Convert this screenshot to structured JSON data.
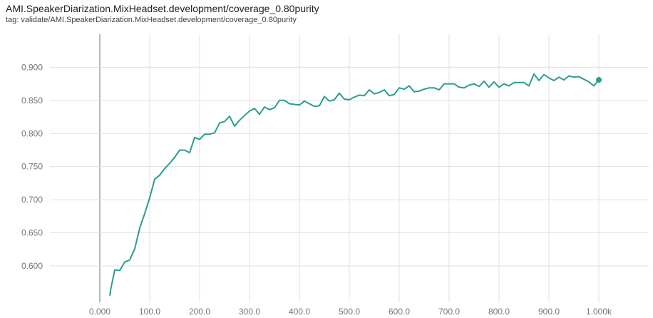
{
  "header": {
    "title": "AMI.SpeakerDiarization.MixHeadset.development/coverage_0.80purity",
    "tag": "tag: validate/AMI.SpeakerDiarization.MixHeadset.development/coverage_0.80purity"
  },
  "colors": {
    "series": "#2a9d8f",
    "grid": "#e0e0e0",
    "zero_line": "#888888",
    "tick_text": "#757575"
  },
  "chart_data": {
    "type": "line",
    "title": "AMI.SpeakerDiarization.MixHeadset.development/coverage_0.80purity",
    "xlabel": "",
    "ylabel": "",
    "grid": true,
    "xlim": [
      -100,
      1100
    ],
    "ylim": [
      0.545,
      0.95
    ],
    "x_ticks": [
      0,
      100,
      200,
      300,
      400,
      500,
      600,
      700,
      800,
      900,
      1000
    ],
    "x_tick_labels": [
      "0.000",
      "100.0",
      "200.0",
      "300.0",
      "400.0",
      "500.0",
      "600.0",
      "700.0",
      "800.0",
      "900.0",
      "1.000k"
    ],
    "y_ticks": [
      0.6,
      0.65,
      0.7,
      0.75,
      0.8,
      0.85,
      0.9
    ],
    "y_tick_labels": [
      "0.600",
      "0.650",
      "0.700",
      "0.750",
      "0.800",
      "0.850",
      "0.900"
    ],
    "series": [
      {
        "name": "",
        "x": [
          20,
          22,
          30,
          40,
          50,
          60,
          70,
          80,
          90,
          100,
          110,
          120,
          130,
          140,
          150,
          160,
          170,
          180,
          190,
          200,
          210,
          220,
          230,
          240,
          250,
          260,
          270,
          280,
          290,
          300,
          310,
          320,
          330,
          340,
          350,
          360,
          370,
          380,
          390,
          400,
          410,
          420,
          430,
          440,
          450,
          460,
          470,
          480,
          490,
          500,
          510,
          520,
          530,
          540,
          550,
          560,
          570,
          580,
          590,
          600,
          610,
          620,
          630,
          640,
          650,
          660,
          670,
          680,
          690,
          700,
          710,
          720,
          730,
          740,
          750,
          760,
          770,
          780,
          790,
          800,
          810,
          820,
          830,
          840,
          850,
          860,
          870,
          880,
          890,
          900,
          910,
          920,
          930,
          940,
          950,
          960,
          970,
          980,
          990,
          1000
        ],
        "y": [
          0.555,
          0.565,
          0.594,
          0.593,
          0.606,
          0.609,
          0.626,
          0.657,
          0.679,
          0.703,
          0.731,
          0.737,
          0.747,
          0.755,
          0.764,
          0.775,
          0.775,
          0.771,
          0.794,
          0.791,
          0.799,
          0.799,
          0.801,
          0.816,
          0.818,
          0.826,
          0.811,
          0.82,
          0.827,
          0.834,
          0.838,
          0.829,
          0.84,
          0.836,
          0.839,
          0.85,
          0.85,
          0.845,
          0.844,
          0.843,
          0.849,
          0.845,
          0.841,
          0.842,
          0.856,
          0.849,
          0.851,
          0.861,
          0.852,
          0.851,
          0.855,
          0.858,
          0.857,
          0.866,
          0.86,
          0.862,
          0.866,
          0.857,
          0.859,
          0.869,
          0.867,
          0.872,
          0.863,
          0.864,
          0.867,
          0.869,
          0.869,
          0.866,
          0.875,
          0.875,
          0.875,
          0.87,
          0.869,
          0.873,
          0.875,
          0.871,
          0.879,
          0.87,
          0.878,
          0.87,
          0.875,
          0.872,
          0.877,
          0.877,
          0.877,
          0.872,
          0.89,
          0.88,
          0.889,
          0.884,
          0.88,
          0.885,
          0.881,
          0.887,
          0.885,
          0.886,
          0.882,
          0.878,
          0.872,
          0.881
        ]
      }
    ],
    "last_point": {
      "x": 1000,
      "y": 0.881
    }
  }
}
